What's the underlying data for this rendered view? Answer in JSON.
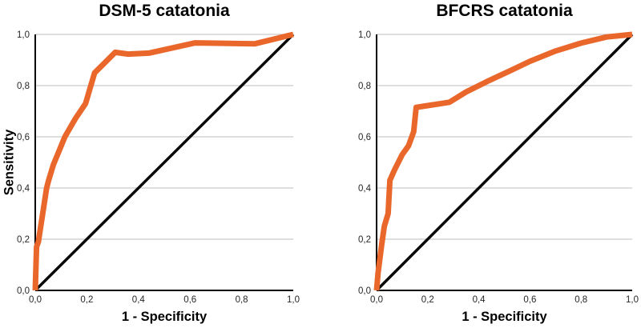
{
  "figure": {
    "background": "#ffffff",
    "accent_color": "#EA672C",
    "reference_color": "#0a0a0a"
  },
  "chart_data": [
    {
      "type": "line",
      "title": "DSM-5 catatonia",
      "xlabel": "1 - Specificity",
      "ylabel": "Sensitivity",
      "xlim": [
        0,
        1
      ],
      "ylim": [
        0,
        1
      ],
      "x_ticks": [
        0,
        0.2,
        0.4,
        0.6,
        0.8,
        1.0
      ],
      "x_tick_labels": [
        "0,0",
        "0,2",
        "0,4",
        "0,6",
        "0,8",
        "1,0"
      ],
      "y_ticks": [
        0,
        0.2,
        0.4,
        0.6,
        0.8,
        1.0
      ],
      "y_tick_labels": [
        "0,0",
        "0,2",
        "0,4",
        "0,6",
        "0,8",
        "1,0"
      ],
      "grid": "horizontal",
      "grid_color": "#c9c9c9",
      "axis_color": "#000000",
      "tick_label_color": "#262626",
      "legend": "none",
      "series": [
        {
          "name": "reference-diagonal",
          "color": "#0a0a0a",
          "stroke_width": 3.5,
          "points": [
            [
              0,
              0
            ],
            [
              1,
              1
            ]
          ]
        },
        {
          "name": "roc-curve",
          "color": "#EA672C",
          "stroke_width": 7,
          "points": [
            [
              0,
              0
            ],
            [
              0.005,
              0.17
            ],
            [
              0.012,
              0.19
            ],
            [
              0.044,
              0.4
            ],
            [
              0.052,
              0.43
            ],
            [
              0.07,
              0.49
            ],
            [
              0.115,
              0.6
            ],
            [
              0.155,
              0.67
            ],
            [
              0.195,
              0.73
            ],
            [
              0.23,
              0.85
            ],
            [
              0.31,
              0.93
            ],
            [
              0.36,
              0.923
            ],
            [
              0.44,
              0.927
            ],
            [
              0.62,
              0.967
            ],
            [
              0.85,
              0.963
            ],
            [
              1,
              1
            ]
          ]
        }
      ]
    },
    {
      "type": "line",
      "title": "BFCRS catatonia",
      "xlabel": "1 - Specificity",
      "ylabel": "",
      "xlim": [
        0,
        1
      ],
      "ylim": [
        0,
        1
      ],
      "x_ticks": [
        0,
        0.2,
        0.4,
        0.6,
        0.8,
        1.0
      ],
      "x_tick_labels": [
        "0,0",
        "0,2",
        "0,4",
        "0,6",
        "0,8",
        "1,0"
      ],
      "y_ticks": [
        0,
        0.2,
        0.4,
        0.6,
        0.8,
        1.0
      ],
      "y_tick_labels": [
        "0,0",
        "0,2",
        "0,4",
        "0,6",
        "0,8",
        "1,0"
      ],
      "grid": "horizontal",
      "grid_color": "#c9c9c9",
      "axis_color": "#000000",
      "tick_label_color": "#262626",
      "legend": "none",
      "series": [
        {
          "name": "reference-diagonal",
          "color": "#0a0a0a",
          "stroke_width": 3.5,
          "points": [
            [
              0,
              0
            ],
            [
              1,
              1
            ]
          ]
        },
        {
          "name": "roc-curve",
          "color": "#EA672C",
          "stroke_width": 7,
          "points": [
            [
              0,
              0
            ],
            [
              0.006,
              0.07
            ],
            [
              0.02,
              0.18
            ],
            [
              0.03,
              0.25
            ],
            [
              0.045,
              0.3
            ],
            [
              0.052,
              0.43
            ],
            [
              0.07,
              0.47
            ],
            [
              0.1,
              0.53
            ],
            [
              0.125,
              0.565
            ],
            [
              0.145,
              0.62
            ],
            [
              0.155,
              0.715
            ],
            [
              0.2,
              0.722
            ],
            [
              0.285,
              0.735
            ],
            [
              0.35,
              0.775
            ],
            [
              0.43,
              0.815
            ],
            [
              0.52,
              0.857
            ],
            [
              0.6,
              0.895
            ],
            [
              0.7,
              0.935
            ],
            [
              0.8,
              0.966
            ],
            [
              0.9,
              0.99
            ],
            [
              1,
              1
            ]
          ]
        }
      ]
    }
  ]
}
